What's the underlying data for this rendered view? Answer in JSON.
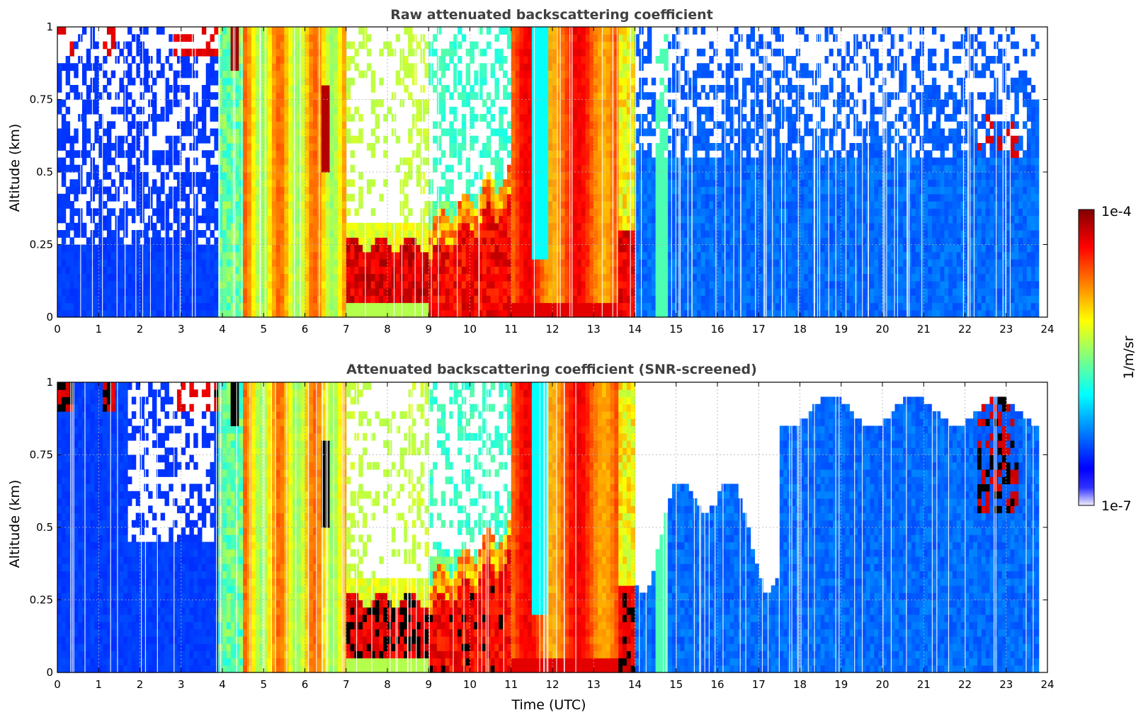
{
  "chart_data": [
    {
      "type": "heatmap",
      "title": "Raw attenuated backscattering coefficient",
      "xlabel": "",
      "ylabel": "Altitude (km)",
      "xlim": [
        0,
        24
      ],
      "ylim": [
        0,
        1
      ],
      "x_ticks": [
        "0",
        "1",
        "2",
        "3",
        "4",
        "5",
        "6",
        "7",
        "8",
        "9",
        "10",
        "11",
        "12",
        "13",
        "14",
        "15",
        "16",
        "17",
        "18",
        "19",
        "20",
        "21",
        "22",
        "23",
        "24"
      ],
      "y_ticks": [
        "0",
        "0.25",
        "0.5",
        "0.75",
        "1"
      ],
      "grid": true,
      "variant": "raw",
      "time_periods": [
        {
          "start": 0,
          "end": 3.9,
          "regime": "low signal, blue; noisy white aloft; red near 1 km top"
        },
        {
          "start": 3.9,
          "end": 7.0,
          "regime": "strong signal columns cyan-yellow-orange"
        },
        {
          "start": 7.0,
          "end": 9.0,
          "regime": "dark red layer near 0.15-0.25 km; white above"
        },
        {
          "start": 9.0,
          "end": 11.0,
          "regime": "red layer rising to ~0.4 km"
        },
        {
          "start": 11.0,
          "end": 13.6,
          "regime": "orange-red full column"
        },
        {
          "start": 13.6,
          "end": 14.0,
          "regime": "red layer below 0.3 km"
        },
        {
          "start": 14.0,
          "end": 23.8,
          "regime": "blue; red plumes near 22.5-23.2 at 0.6-1 km"
        }
      ]
    },
    {
      "type": "heatmap",
      "title": "Attenuated backscattering coefficient (SNR-screened)",
      "xlabel": "Time (UTC)",
      "ylabel": "Altitude (km)",
      "xlim": [
        0,
        24
      ],
      "ylim": [
        0,
        1
      ],
      "x_ticks": [
        "0",
        "1",
        "2",
        "3",
        "4",
        "5",
        "6",
        "7",
        "8",
        "9",
        "10",
        "11",
        "12",
        "13",
        "14",
        "15",
        "16",
        "17",
        "18",
        "19",
        "20",
        "21",
        "22",
        "23",
        "24"
      ],
      "y_ticks": [
        "0",
        "0.25",
        "0.5",
        "0.75",
        "1"
      ],
      "grid": true,
      "variant": "screened"
    }
  ],
  "colorbar": {
    "label": "1/m/sr",
    "max_label": "1e-4",
    "min_label": "1e-7",
    "scale": "log",
    "colormap": "jet",
    "colors": [
      "#f0f0ff",
      "#0000ff",
      "#00ffff",
      "#ffff00",
      "#ff0000",
      "#800000"
    ]
  }
}
